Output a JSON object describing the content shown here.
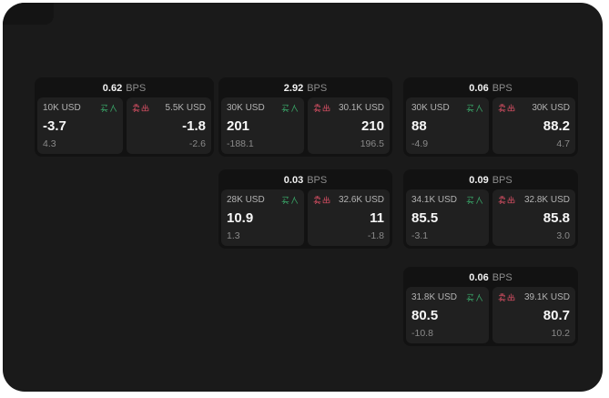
{
  "labels": {
    "bps_unit": "BPS",
    "buy": "买入",
    "sell": "卖出"
  },
  "colors": {
    "buy_green": "#38a065",
    "sell_red": "#c94b5e",
    "page_bg": "#1a1a1a",
    "card_bg": "#121212",
    "panel_bg": "#202020"
  },
  "cards": [
    {
      "col": 0,
      "row": 0,
      "bps": "0.62",
      "buy": {
        "amount": "10K USD",
        "price": "-3.7",
        "delta": "4.3"
      },
      "sell": {
        "amount": "5.5K USD",
        "price": "-1.8",
        "delta": "-2.6"
      }
    },
    {
      "col": 1,
      "row": 0,
      "bps": "2.92",
      "buy": {
        "amount": "30K USD",
        "price": "201",
        "delta": "-188.1"
      },
      "sell": {
        "amount": "30.1K USD",
        "price": "210",
        "delta": "196.5"
      }
    },
    {
      "col": 2,
      "row": 0,
      "bps": "0.06",
      "buy": {
        "amount": "30K USD",
        "price": "88",
        "delta": "-4.9"
      },
      "sell": {
        "amount": "30K USD",
        "price": "88.2",
        "delta": "4.7"
      }
    },
    {
      "col": 1,
      "row": 1,
      "bps": "0.03",
      "buy": {
        "amount": "28K USD",
        "price": "10.9",
        "delta": "1.3"
      },
      "sell": {
        "amount": "32.6K USD",
        "price": "11",
        "delta": "-1.8"
      }
    },
    {
      "col": 2,
      "row": 1,
      "bps": "0.09",
      "buy": {
        "amount": "34.1K USD",
        "price": "85.5",
        "delta": "-3.1"
      },
      "sell": {
        "amount": "32.8K USD",
        "price": "85.8",
        "delta": "3.0"
      }
    },
    {
      "col": 2,
      "row": 2,
      "bps": "0.06",
      "buy": {
        "amount": "31.8K USD",
        "price": "80.5",
        "delta": "-10.8"
      },
      "sell": {
        "amount": "39.1K USD",
        "price": "80.7",
        "delta": "10.2"
      }
    }
  ]
}
